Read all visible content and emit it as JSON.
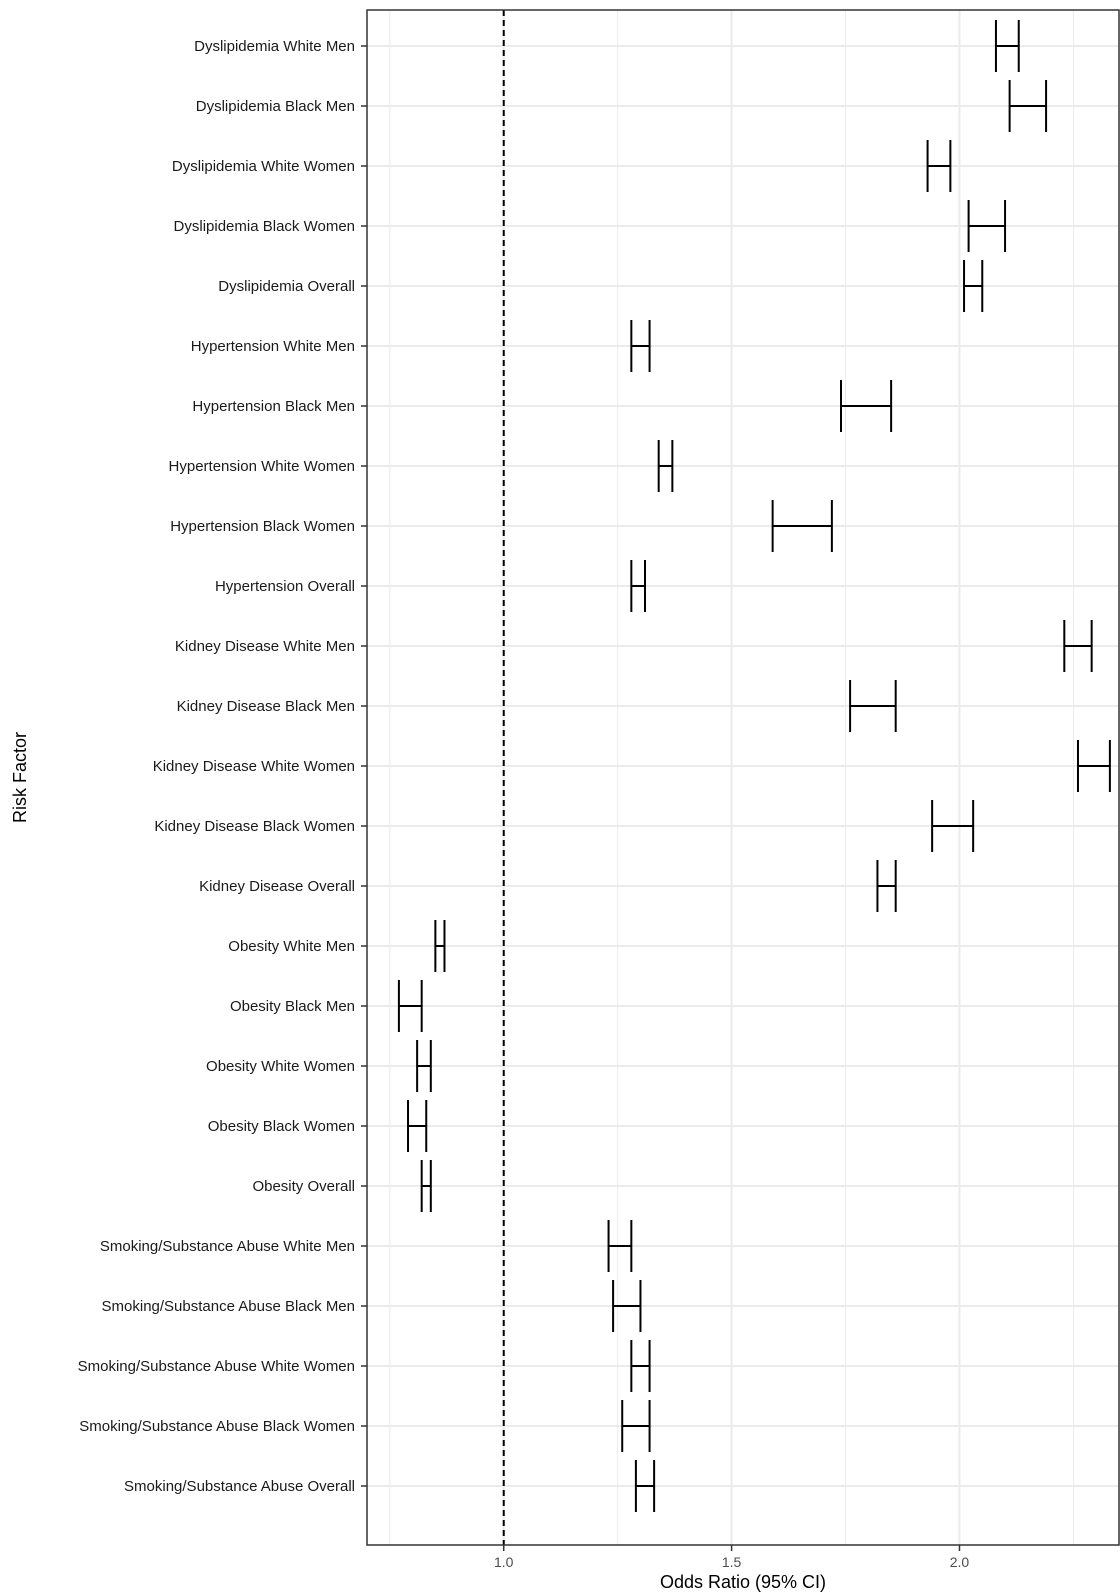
{
  "chart_data": {
    "type": "errorbar",
    "xlabel": "Odds Ratio (95% CI)",
    "ylabel": "Risk Factor",
    "xlim": [
      0.7,
      2.35
    ],
    "xticks": [
      1.0,
      1.5,
      2.0
    ],
    "xtick_labels": [
      "1.0",
      "1.5",
      "2.0"
    ],
    "minor_xticks": [
      0.75,
      1.25,
      1.75,
      2.25
    ],
    "reference_line": 1.0,
    "grid": true,
    "colors": {
      "bars": "#000000",
      "grid": "#ebebeb",
      "border": "#333333",
      "reference": "#000000"
    },
    "rows": [
      {
        "label": "Dyslipidemia White Men",
        "lower": 2.08,
        "upper": 2.13
      },
      {
        "label": "Dyslipidemia Black Men",
        "lower": 2.11,
        "upper": 2.19
      },
      {
        "label": "Dyslipidemia White Women",
        "lower": 1.93,
        "upper": 1.98
      },
      {
        "label": "Dyslipidemia Black Women",
        "lower": 2.02,
        "upper": 2.1
      },
      {
        "label": "Dyslipidemia Overall",
        "lower": 2.01,
        "upper": 2.05
      },
      {
        "label": "Hypertension White Men",
        "lower": 1.28,
        "upper": 1.32
      },
      {
        "label": "Hypertension Black Men",
        "lower": 1.74,
        "upper": 1.85
      },
      {
        "label": "Hypertension White Women",
        "lower": 1.34,
        "upper": 1.37
      },
      {
        "label": "Hypertension Black Women",
        "lower": 1.59,
        "upper": 1.72
      },
      {
        "label": "Hypertension Overall",
        "lower": 1.28,
        "upper": 1.31
      },
      {
        "label": "Kidney Disease White Men",
        "lower": 2.23,
        "upper": 2.29
      },
      {
        "label": "Kidney Disease Black Men",
        "lower": 1.76,
        "upper": 1.86
      },
      {
        "label": "Kidney Disease White Women",
        "lower": 2.26,
        "upper": 2.33
      },
      {
        "label": "Kidney Disease Black Women",
        "lower": 1.94,
        "upper": 2.03
      },
      {
        "label": "Kidney Disease Overall",
        "lower": 1.82,
        "upper": 1.86
      },
      {
        "label": "Obesity White Men",
        "lower": 0.85,
        "upper": 0.87
      },
      {
        "label": "Obesity Black Men",
        "lower": 0.77,
        "upper": 0.82
      },
      {
        "label": "Obesity White Women",
        "lower": 0.81,
        "upper": 0.84
      },
      {
        "label": "Obesity Black Women",
        "lower": 0.79,
        "upper": 0.83
      },
      {
        "label": "Obesity Overall",
        "lower": 0.82,
        "upper": 0.84
      },
      {
        "label": "Smoking/Substance Abuse White Men",
        "lower": 1.23,
        "upper": 1.28
      },
      {
        "label": "Smoking/Substance Abuse Black Men",
        "lower": 1.24,
        "upper": 1.3
      },
      {
        "label": "Smoking/Substance Abuse White Women",
        "lower": 1.28,
        "upper": 1.32
      },
      {
        "label": "Smoking/Substance Abuse Black Women",
        "lower": 1.26,
        "upper": 1.32
      },
      {
        "label": "Smoking/Substance Abuse Overall",
        "lower": 1.29,
        "upper": 1.33
      }
    ]
  }
}
